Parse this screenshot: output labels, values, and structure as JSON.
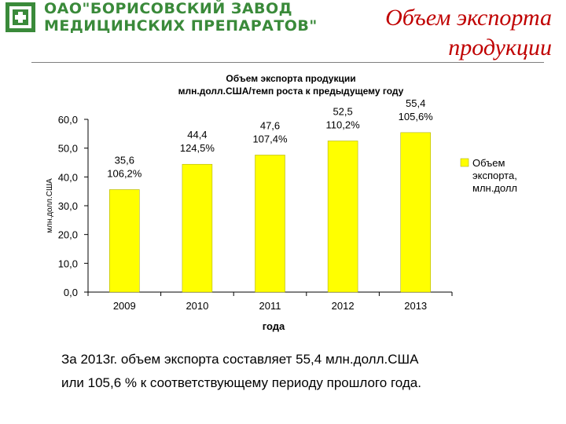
{
  "header": {
    "company_line1": "ОАО\"БОРИСОВСКИЙ ЗАВОД",
    "company_line2": "МЕДИЦИНСКИХ ПРЕПАРАТОВ\"",
    "slide_title_line1": "Объем экспорта",
    "slide_title_line2": "продукции",
    "logo_color": "#3a8a3a"
  },
  "chart_data": {
    "type": "bar",
    "title_line1": "Объем экспорта продукции",
    "title_line2": "млн.долл.США/темп роста к предыдущему году",
    "categories": [
      "2009",
      "2010",
      "2011",
      "2012",
      "2013"
    ],
    "series": [
      {
        "name": "Объем экспорта, млн.долл",
        "values": [
          35.6,
          44.4,
          47.6,
          52.5,
          55.4
        ],
        "growth_labels": [
          "106,2%",
          "124,5%",
          "107,4%",
          "110,2%",
          "105,6%"
        ],
        "value_labels": [
          "35,6",
          "44,4",
          "47,6",
          "52,5",
          "55,4"
        ],
        "color": "#ffff00"
      }
    ],
    "legend_lines": [
      "Объем",
      "экспорта,",
      "млн.долл"
    ],
    "legend_position": "right",
    "xlabel": "года",
    "ylabel": "млн.долл.США",
    "ylim": [
      0,
      60
    ],
    "yticks": [
      "0,0",
      "10,0",
      "20,0",
      "30,0",
      "40,0",
      "50,0",
      "60,0"
    ],
    "grid": false
  },
  "footer": {
    "line1": "За   2013г. объем экспорта составляет 55,4 млн.долл.США",
    "line2": "или 105,6 %  к соответствующему периоду прошлого года."
  }
}
